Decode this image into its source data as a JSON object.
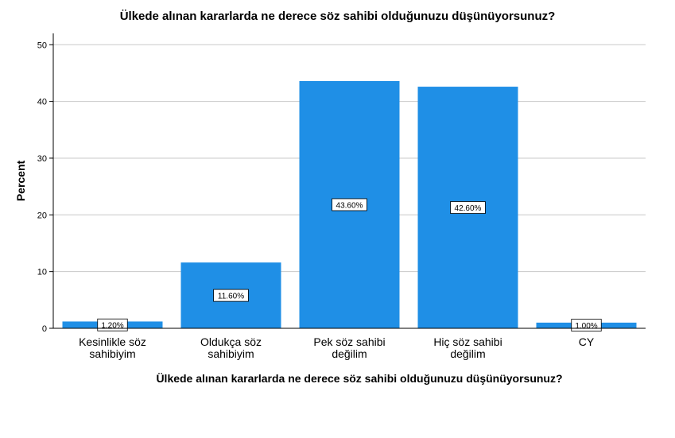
{
  "chart_data": {
    "type": "bar",
    "title": "Ülkede alınan kararlarda ne derece söz sahibi olduğunuzu düşünüyorsunuz?",
    "xlabel": "Ülkede alınan kararlarda ne derece söz sahibi olduğunuzu düşünüyorsunuz?",
    "ylabel": "Percent",
    "categories": [
      [
        "Kesinlikle söz",
        "sahibiyim"
      ],
      [
        "Oldukça söz",
        "sahibiyim"
      ],
      [
        "Pek söz sahibi",
        "değilim"
      ],
      [
        "Hiç söz sahibi",
        "değilim"
      ],
      [
        "CY"
      ]
    ],
    "values": [
      1.2,
      11.6,
      43.6,
      42.6,
      1.0
    ],
    "data_labels": [
      "1.20%",
      "11.60%",
      "43.60%",
      "42.60%",
      "1.00%"
    ],
    "ylim": [
      0,
      52
    ],
    "yticks": [
      0,
      10,
      20,
      30,
      40,
      50
    ],
    "grid": true,
    "colors": {
      "bar": "#1f8fe6",
      "grid": "#c8c8c8",
      "axis": "#000000"
    }
  }
}
